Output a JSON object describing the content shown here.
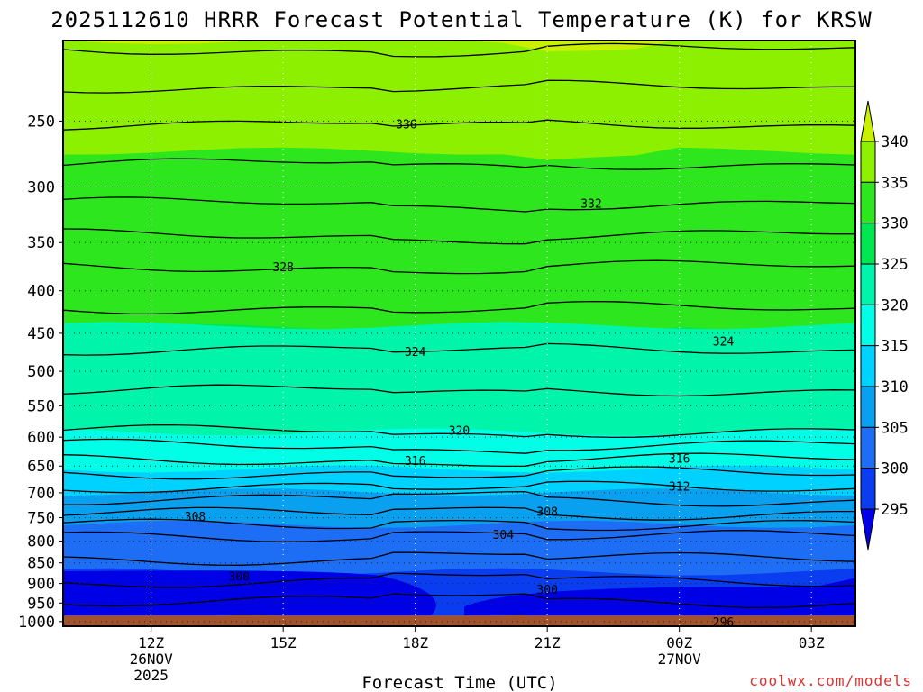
{
  "chart_data": {
    "type": "contour",
    "title": "2025112610 HRRR Forecast Potential Temperature (K) for KRSW",
    "xlabel": "Forecast Time (UTC)",
    "ylabel": "",
    "credit": "coolwx.com/models",
    "x_ticks": [
      {
        "hour": 12,
        "label": "12Z",
        "sub1": "26NOV",
        "sub2": "2025"
      },
      {
        "hour": 15,
        "label": "15Z",
        "sub1": "",
        "sub2": ""
      },
      {
        "hour": 18,
        "label": "18Z",
        "sub1": "",
        "sub2": ""
      },
      {
        "hour": 21,
        "label": "21Z",
        "sub1": "",
        "sub2": ""
      },
      {
        "hour": 24,
        "label": "00Z",
        "sub1": "27NOV",
        "sub2": ""
      },
      {
        "hour": 27,
        "label": "03Z",
        "sub1": "",
        "sub2": ""
      }
    ],
    "x_range_hours": [
      10,
      28
    ],
    "y_ticks": [
      250,
      300,
      350,
      400,
      450,
      500,
      550,
      600,
      650,
      700,
      750,
      800,
      850,
      900,
      950,
      1000
    ],
    "y_range_hPa": [
      200,
      1013
    ],
    "y_scale": "log-pressure (inverted)",
    "colorbar": {
      "levels": [
        295,
        300,
        305,
        310,
        315,
        320,
        325,
        330,
        335,
        340
      ],
      "labels": [
        "295",
        "300",
        "305",
        "310",
        "315",
        "320",
        "325",
        "330",
        "335",
        "340"
      ],
      "colors": [
        "#0000e6",
        "#0a3cf0",
        "#1e6ef5",
        "#0aa0f0",
        "#00d2ff",
        "#00ffe6",
        "#00f5aa",
        "#00e650",
        "#2de61e",
        "#8cf000",
        "#c8f000"
      ]
    },
    "contour_labels": [
      {
        "text": "336",
        "hour": 17.8,
        "hPa": 252
      },
      {
        "text": "332",
        "hour": 22.0,
        "hPa": 314
      },
      {
        "text": "328",
        "hour": 15.0,
        "hPa": 374
      },
      {
        "text": "324",
        "hour": 18.0,
        "hPa": 473
      },
      {
        "text": "324",
        "hour": 25.0,
        "hPa": 460
      },
      {
        "text": "320",
        "hour": 19.0,
        "hPa": 589
      },
      {
        "text": "316",
        "hour": 18.0,
        "hPa": 640
      },
      {
        "text": "316",
        "hour": 24.0,
        "hPa": 636
      },
      {
        "text": "312",
        "hour": 24.0,
        "hPa": 687
      },
      {
        "text": "308",
        "hour": 13.0,
        "hPa": 747
      },
      {
        "text": "308",
        "hour": 21.0,
        "hPa": 737
      },
      {
        "text": "304",
        "hour": 20.0,
        "hPa": 785
      },
      {
        "text": "300",
        "hour": 14.0,
        "hPa": 882
      },
      {
        "text": "300",
        "hour": 21.0,
        "hPa": 915
      },
      {
        "text": "296",
        "hour": 25.0,
        "hPa": 1001
      }
    ],
    "fill_band_bottoms_hPa": [
      {
        "theta": 340,
        "hPa": 200
      },
      {
        "theta": 335,
        "hPa": 270
      },
      {
        "theta": 330,
        "hPa": 440
      },
      {
        "theta": 325,
        "hPa": 440
      },
      {
        "theta": 320,
        "hPa": 595
      },
      {
        "theta": 315,
        "hPa": 660
      },
      {
        "theta": 310,
        "hPa": 700
      },
      {
        "theta": 305,
        "hPa": 760
      },
      {
        "theta": 300,
        "hPa": 865
      }
    ],
    "isentrope_levels_K": [
      340,
      338,
      336,
      334,
      332,
      330,
      328,
      326,
      324,
      322,
      320,
      318,
      316,
      314,
      312,
      310,
      308,
      306,
      304,
      302,
      300,
      298,
      296
    ],
    "ground_color": "#a0522d"
  }
}
